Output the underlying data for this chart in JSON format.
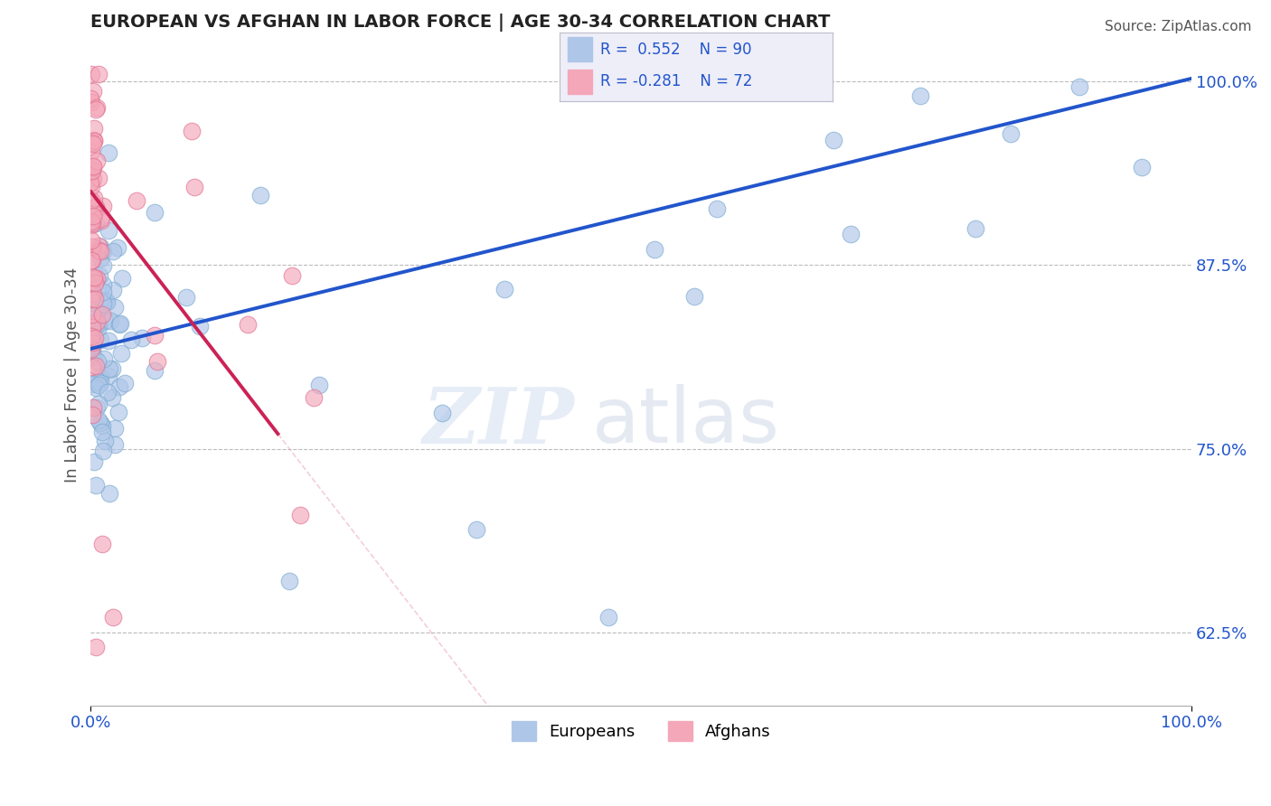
{
  "title": "EUROPEAN VS AFGHAN IN LABOR FORCE | AGE 30-34 CORRELATION CHART",
  "source": "Source: ZipAtlas.com",
  "ylabel": "In Labor Force | Age 30-34",
  "xlim": [
    0.0,
    1.0
  ],
  "ylim": [
    0.575,
    1.025
  ],
  "yticks": [
    0.625,
    0.75,
    0.875,
    1.0
  ],
  "ytick_labels": [
    "62.5%",
    "75.0%",
    "87.5%",
    "100.0%"
  ],
  "watermark_zip": "ZIP",
  "watermark_atlas": "atlas",
  "dot_blue": "#aec6e8",
  "dot_blue_edge": "#7aaad0",
  "dot_pink": "#f4a7b9",
  "dot_pink_edge": "#e07090",
  "trendline_blue": "#2255cc",
  "trendline_pink": "#cc2255",
  "trendline_pink_dashed": "#e8a0b0",
  "background_color": "#ffffff",
  "grid_color": "#bbbbbb",
  "title_color": "#222222",
  "source_color": "#555555",
  "legend_R_N_color": "#2255cc",
  "legend_box_bg": "#eeeef8",
  "legend_box_edge": "#bbbbcc",
  "axis_label_color": "#2255cc",
  "ylabel_color": "#555555"
}
